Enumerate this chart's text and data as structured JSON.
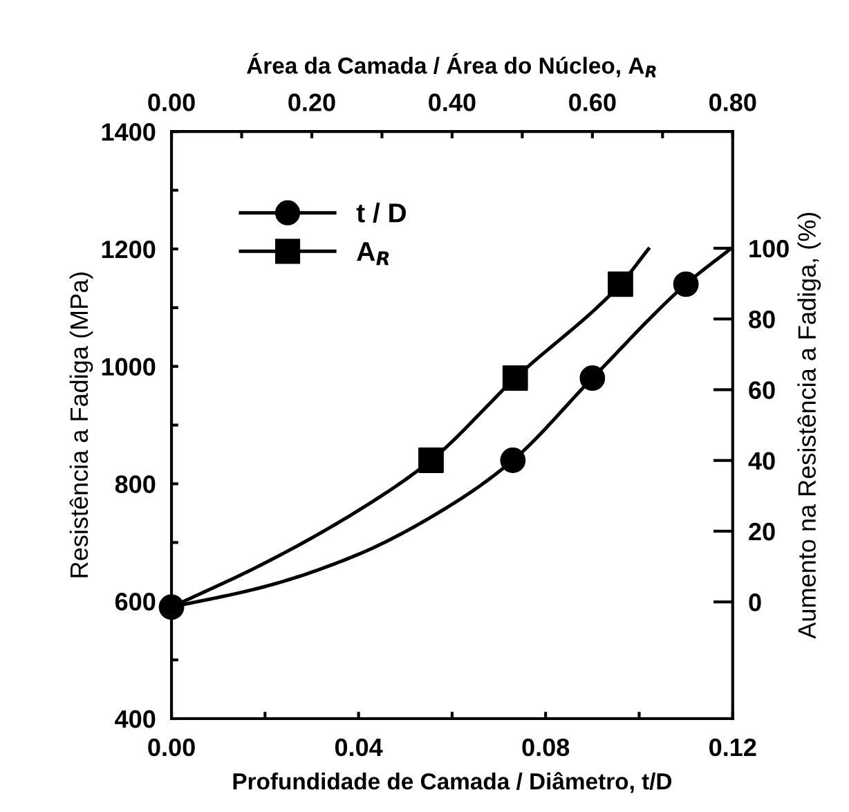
{
  "chart_data": {
    "type": "line",
    "x2label": "Área da Camada / Área do Núcleo, A$_{R}$",
    "xlabel": "Profundidade de Camada / Diâmetro, t/D",
    "ylabel": "Resistência a Fadiga (MPa)",
    "y2label": "Aumento na Resistência a Fadiga, (%)",
    "xlim": [
      0,
      0.12
    ],
    "xticks": [
      {
        "value": 0,
        "label": "0.00"
      },
      {
        "value": 0.02,
        "label": null
      },
      {
        "value": 0.04,
        "label": "0.04"
      },
      {
        "value": 0.06,
        "label": null
      },
      {
        "value": 0.08,
        "label": "0.08"
      },
      {
        "value": 0.1,
        "label": null
      },
      {
        "value": 0.12,
        "label": "0.12"
      }
    ],
    "x2lim": [
      0,
      0.8
    ],
    "x2ticks": [
      {
        "value": 0,
        "label": "0.00"
      },
      {
        "value": 0.1,
        "label": null
      },
      {
        "value": 0.2,
        "label": "0.20"
      },
      {
        "value": 0.3,
        "label": null
      },
      {
        "value": 0.4,
        "label": "0.40"
      },
      {
        "value": 0.5,
        "label": null
      },
      {
        "value": 0.6,
        "label": "0.60"
      },
      {
        "value": 0.7,
        "label": null
      },
      {
        "value": 0.8,
        "label": "0.80"
      }
    ],
    "ylim": [
      400,
      1400
    ],
    "yticks": [
      400,
      {
        "value": 500,
        "label": null
      },
      600,
      {
        "value": 700,
        "label": null
      },
      800,
      {
        "value": 900,
        "label": null
      },
      1000,
      {
        "value": 1100,
        "label": null
      },
      1200,
      {
        "value": 1300,
        "label": null
      },
      1400
    ],
    "y2lim": [
      -33,
      133
    ],
    "y2ticks": [
      0,
      20,
      40,
      60,
      80,
      100
    ],
    "legend": "top left",
    "series": [
      {
        "name": "t / D",
        "type": "scatter",
        "marker": "circle",
        "color": "#000000",
        "x": [
          0,
          0.073,
          0.09,
          0.11
        ],
        "values": [
          590,
          840,
          980,
          1140
        ]
      },
      {
        "color": "#000000",
        "x": [
          0,
          0.02,
          0.04,
          0.06,
          0.073,
          0.09,
          0.11,
          0.1195
        ],
        "values": [
          590,
          625,
          680,
          765,
          840,
          980,
          1140,
          1200
        ]
      },
      {
        "name": "A$_{R}$",
        "type": "scatter",
        "marker": "square",
        "axis": "x2",
        "color": "#000000",
        "x": [
          0.37,
          0.49,
          0.64
        ],
        "values": [
          840,
          980,
          1140
        ]
      },
      {
        "axis": "x2",
        "color": "#000000",
        "x": [
          0,
          0.133,
          0.267,
          0.37,
          0.49,
          0.64,
          0.68
        ],
        "values": [
          590,
          665,
          755,
          840,
          980,
          1140,
          1200
        ]
      }
    ]
  }
}
